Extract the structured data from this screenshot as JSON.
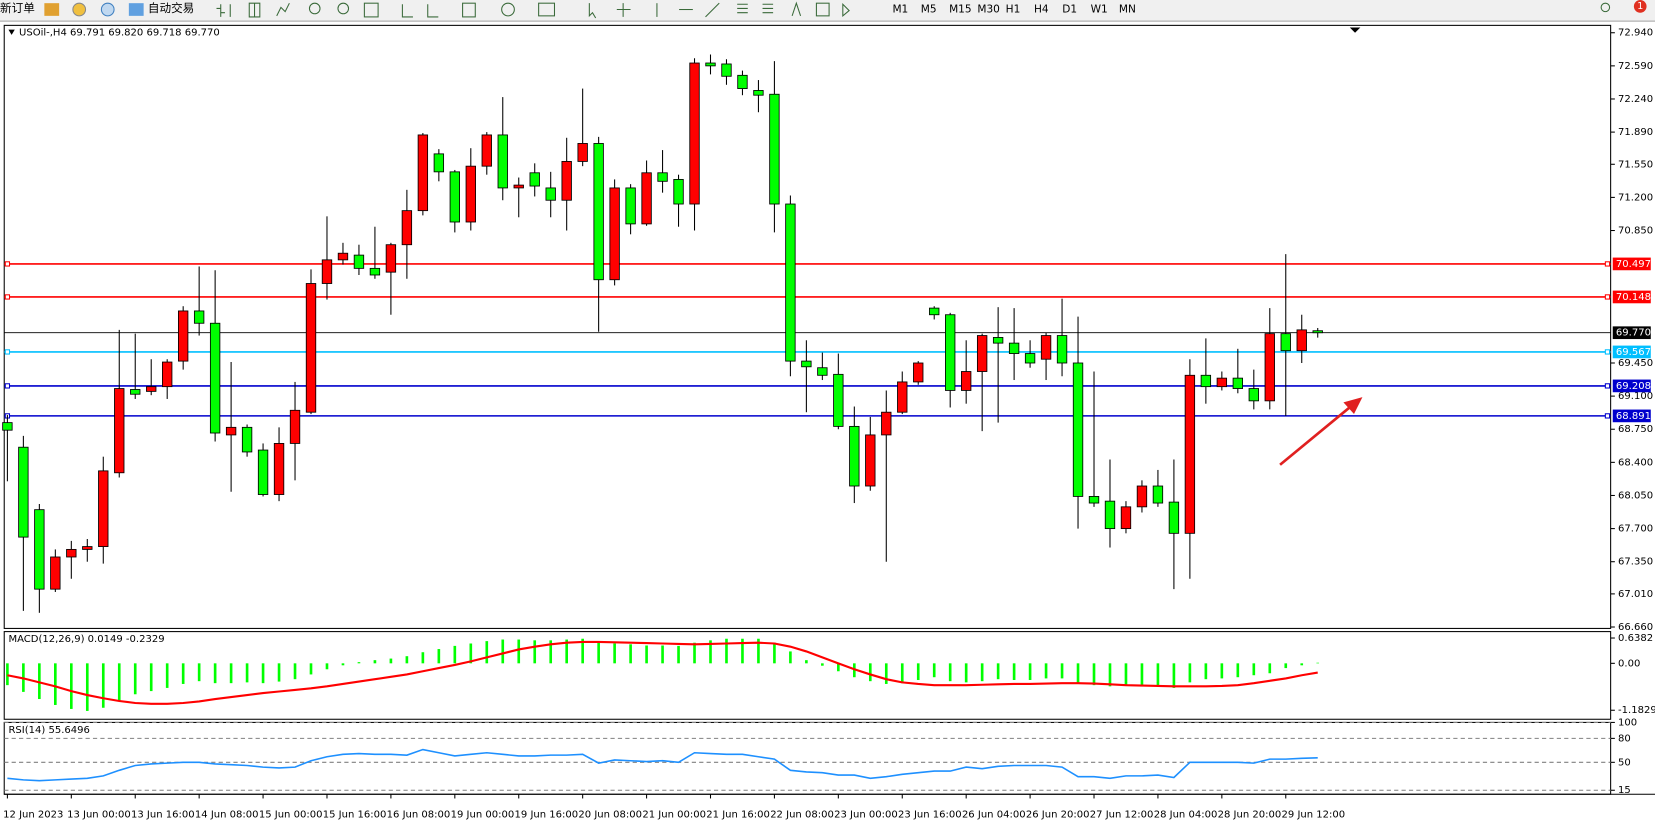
{
  "toolbar": {
    "new_order": "新订单",
    "auto_trading": "自动交易",
    "timeframes": [
      "M1",
      "M5",
      "M15",
      "M30",
      "H1",
      "H4",
      "D1",
      "W1",
      "MN"
    ],
    "badge": "1"
  },
  "chart_data": [
    {
      "type": "candlestick",
      "header": "USOil-,H4  69.791 69.820 69.718 69.770",
      "categories": [
        "12 Jun 2023",
        null,
        null,
        null,
        "13 Jun 00:00",
        null,
        null,
        null,
        "13 Jun 16:00",
        null,
        null,
        null,
        "14 Jun 08:00",
        null,
        null,
        null,
        "15 Jun 00:00",
        null,
        null,
        null,
        "15 Jun 16:00",
        null,
        null,
        null,
        "16 Jun 08:00",
        null,
        null,
        null,
        "19 Jun 00:00",
        null,
        null,
        null,
        "19 Jun 16:00",
        null,
        null,
        null,
        "20 Jun 08:00",
        null,
        null,
        null,
        "21 Jun 00:00",
        null,
        null,
        null,
        "21 Jun 16:00",
        null,
        null,
        null,
        "22 Jun 08:00",
        null,
        null,
        null,
        "23 Jun 00:00",
        null,
        null,
        null,
        "23 Jun 16:00",
        null,
        null,
        null,
        "26 Jun 04:00",
        null,
        null,
        null,
        "26 Jun 20:00",
        null,
        null,
        null,
        "27 Jun 12:00",
        null,
        null,
        null,
        "28 Jun 04:00",
        null,
        null,
        null,
        "28 Jun 20:00",
        null,
        null,
        null,
        "29 Jun 12:00",
        null,
        null
      ],
      "open": [
        68.82,
        68.56,
        67.9,
        67.06,
        67.4,
        67.48,
        67.51,
        68.29,
        69.17,
        69.15,
        69.2,
        69.47,
        70.0,
        69.87,
        68.69,
        68.77,
        68.53,
        68.06,
        68.6,
        68.93,
        70.29,
        70.54,
        70.59,
        70.45,
        70.41,
        70.7,
        71.06,
        71.66,
        71.47,
        70.94,
        71.53,
        71.86,
        71.3,
        71.46,
        71.3,
        71.17,
        71.58,
        71.77,
        70.33,
        71.3,
        70.92,
        71.46,
        71.39,
        71.13,
        72.62,
        72.61,
        72.49,
        72.33,
        72.29,
        71.13,
        69.47,
        69.4,
        69.33,
        68.78,
        68.15,
        68.69,
        68.93,
        69.25,
        70.03,
        69.96,
        69.16,
        69.36,
        69.72,
        69.66,
        69.55,
        69.49,
        69.74,
        69.45,
        68.04,
        67.99,
        67.7,
        67.93,
        68.15,
        67.98,
        67.65,
        69.32,
        69.2,
        69.29,
        69.18,
        69.05,
        69.76,
        69.58,
        69.791
      ],
      "high": [
        68.9,
        68.68,
        67.96,
        67.48,
        67.57,
        67.59,
        68.46,
        69.8,
        69.76,
        69.49,
        69.49,
        70.05,
        70.47,
        70.43,
        69.46,
        68.8,
        68.6,
        68.77,
        69.25,
        70.44,
        71.0,
        70.72,
        70.7,
        70.89,
        70.72,
        71.28,
        71.88,
        71.71,
        71.49,
        71.72,
        71.89,
        72.26,
        71.41,
        71.56,
        71.47,
        71.83,
        72.35,
        71.84,
        71.39,
        71.34,
        71.59,
        71.7,
        71.44,
        72.67,
        72.71,
        72.66,
        72.54,
        72.44,
        72.64,
        71.22,
        69.69,
        69.56,
        69.55,
        68.99,
        68.88,
        69.16,
        69.36,
        69.47,
        70.05,
        69.98,
        69.69,
        69.76,
        70.04,
        70.03,
        69.69,
        69.77,
        70.13,
        69.94,
        69.36,
        68.43,
        67.99,
        68.21,
        68.32,
        68.43,
        69.49,
        69.71,
        69.36,
        69.6,
        69.38,
        70.03,
        70.6,
        69.96,
        69.82
      ],
      "low": [
        68.2,
        66.83,
        66.81,
        67.03,
        67.17,
        67.35,
        67.33,
        68.24,
        69.07,
        69.11,
        69.07,
        69.38,
        69.74,
        68.62,
        68.09,
        68.46,
        68.04,
        67.99,
        68.21,
        68.91,
        70.12,
        70.49,
        70.38,
        70.34,
        69.96,
        70.34,
        71.01,
        71.37,
        70.83,
        70.85,
        71.44,
        71.17,
        70.99,
        71.21,
        70.99,
        70.85,
        71.53,
        69.78,
        70.27,
        70.81,
        70.9,
        71.25,
        70.89,
        70.85,
        72.5,
        72.39,
        72.28,
        72.1,
        70.83,
        69.31,
        68.93,
        69.27,
        68.75,
        67.97,
        68.1,
        67.35,
        68.91,
        69.22,
        69.91,
        68.98,
        69.02,
        68.73,
        68.82,
        69.27,
        69.4,
        69.27,
        69.31,
        67.7,
        67.93,
        67.5,
        67.65,
        67.87,
        67.93,
        67.06,
        67.17,
        69.02,
        69.16,
        69.13,
        68.96,
        68.96,
        68.89,
        69.45,
        69.718
      ],
      "close": [
        68.74,
        67.61,
        67.06,
        67.4,
        67.48,
        67.51,
        68.31,
        69.18,
        69.12,
        69.2,
        69.46,
        70.0,
        69.87,
        68.71,
        68.77,
        68.51,
        68.06,
        68.6,
        68.95,
        70.29,
        70.54,
        70.61,
        70.45,
        70.38,
        70.7,
        71.06,
        71.86,
        71.47,
        70.94,
        71.53,
        71.86,
        71.3,
        71.33,
        71.32,
        71.17,
        71.58,
        71.77,
        70.33,
        71.3,
        70.92,
        71.46,
        71.37,
        71.13,
        72.62,
        72.59,
        72.48,
        72.35,
        72.28,
        71.13,
        69.47,
        69.41,
        69.32,
        68.78,
        68.15,
        68.69,
        68.93,
        69.25,
        69.45,
        69.96,
        69.16,
        69.36,
        69.74,
        69.66,
        69.55,
        69.45,
        69.74,
        69.45,
        68.04,
        67.97,
        67.7,
        67.93,
        68.15,
        67.97,
        67.65,
        69.32,
        69.2,
        69.29,
        69.18,
        69.05,
        69.76,
        69.58,
        69.8,
        69.77
      ],
      "up_color": "#ff0000",
      "down_color": "#00ff00",
      "wick_color": "#000000",
      "ylim": [
        66.645,
        73.018
      ],
      "yticks": [
        {
          "value": 72.94,
          "label": "72.940"
        },
        {
          "value": 72.59,
          "label": "72.590"
        },
        {
          "value": 72.24,
          "label": "72.240"
        },
        {
          "value": 71.89,
          "label": "71.890"
        },
        {
          "value": 71.55,
          "label": "71.550"
        },
        {
          "value": 71.2,
          "label": "71.200"
        },
        {
          "value": 70.85,
          "label": "70.850"
        },
        {
          "value": 69.45,
          "label": "69.450"
        },
        {
          "value": 69.1,
          "label": "69.100"
        },
        {
          "value": 68.75,
          "label": "68.750"
        },
        {
          "value": 68.4,
          "label": "68.400"
        },
        {
          "value": 68.05,
          "label": "68.050"
        },
        {
          "value": 67.7,
          "label": "67.700"
        },
        {
          "value": 67.35,
          "label": "67.350"
        },
        {
          "value": 67.01,
          "label": "67.010"
        },
        {
          "value": 66.66,
          "label": "66.660"
        }
      ],
      "levels": [
        70.497,
        70.148,
        69.567,
        69.208,
        68.891
      ],
      "level_colors": [
        "#ff0000",
        "#ff0000",
        "#00bfff",
        "#0000cd",
        "#0000cd"
      ],
      "last_price": {
        "value": 69.77,
        "label": "69.770"
      }
    },
    {
      "type": "macd",
      "header": "MACD(12,26,9) 0.0149 -0.2329",
      "histogram": {
        "color": "#00ff00",
        "values": [
          -0.55,
          -0.72,
          -0.9,
          -1.05,
          -1.15,
          -1.2,
          -1.12,
          -0.95,
          -0.78,
          -0.7,
          -0.62,
          -0.52,
          -0.45,
          -0.5,
          -0.5,
          -0.48,
          -0.5,
          -0.46,
          -0.4,
          -0.28,
          -0.15,
          -0.05,
          0.03,
          0.08,
          0.12,
          0.18,
          0.28,
          0.36,
          0.44,
          0.5,
          0.56,
          0.6,
          0.6,
          0.58,
          0.58,
          0.6,
          0.62,
          0.55,
          0.5,
          0.48,
          0.45,
          0.45,
          0.44,
          0.52,
          0.58,
          0.62,
          0.62,
          0.62,
          0.52,
          0.3,
          0.08,
          -0.06,
          -0.2,
          -0.35,
          -0.45,
          -0.52,
          -0.5,
          -0.42,
          -0.35,
          -0.45,
          -0.48,
          -0.45,
          -0.4,
          -0.42,
          -0.42,
          -0.38,
          -0.38,
          -0.5,
          -0.55,
          -0.58,
          -0.55,
          -0.55,
          -0.58,
          -0.62,
          -0.48,
          -0.4,
          -0.38,
          -0.35,
          -0.3,
          -0.25,
          -0.12,
          -0.05,
          0.0149
        ]
      },
      "signal": {
        "color": "#ff0000",
        "values": [
          -0.3,
          -0.38,
          -0.48,
          -0.58,
          -0.7,
          -0.8,
          -0.88,
          -0.95,
          -1.0,
          -1.02,
          -1.02,
          -1.0,
          -0.96,
          -0.9,
          -0.85,
          -0.8,
          -0.75,
          -0.71,
          -0.67,
          -0.63,
          -0.58,
          -0.52,
          -0.46,
          -0.4,
          -0.34,
          -0.28,
          -0.2,
          -0.12,
          -0.04,
          0.05,
          0.15,
          0.25,
          0.35,
          0.42,
          0.48,
          0.52,
          0.54,
          0.54,
          0.53,
          0.52,
          0.51,
          0.5,
          0.49,
          0.48,
          0.49,
          0.5,
          0.51,
          0.52,
          0.5,
          0.42,
          0.3,
          0.15,
          0.0,
          -0.15,
          -0.28,
          -0.4,
          -0.48,
          -0.52,
          -0.55,
          -0.55,
          -0.55,
          -0.54,
          -0.53,
          -0.52,
          -0.52,
          -0.51,
          -0.5,
          -0.5,
          -0.51,
          -0.53,
          -0.55,
          -0.56,
          -0.57,
          -0.58,
          -0.58,
          -0.58,
          -0.57,
          -0.55,
          -0.5,
          -0.44,
          -0.38,
          -0.3,
          -0.2329
        ]
      },
      "ylim": [
        -1.41,
        0.8
      ],
      "yticks": [
        0.6382,
        {
          "value": 0,
          "label": "0.00"
        },
        -1.1829
      ]
    },
    {
      "type": "line",
      "header": "RSI(14) 55.6496",
      "color": "#1e90ff",
      "values": [
        30,
        28,
        27,
        28,
        29,
        30,
        33,
        40,
        46,
        48,
        49,
        50,
        50,
        48,
        47,
        46,
        44,
        43,
        44,
        52,
        57,
        60,
        61,
        60,
        60,
        59,
        66,
        62,
        58,
        60,
        62,
        60,
        58,
        58,
        59,
        59,
        60,
        49,
        53,
        52,
        51,
        52,
        50,
        62,
        61,
        60,
        60,
        57,
        54,
        40,
        38,
        37,
        34,
        34,
        30,
        32,
        35,
        37,
        39,
        39,
        44,
        42,
        45,
        46,
        46,
        46,
        44,
        32,
        32,
        30,
        33,
        33,
        34,
        31,
        50,
        50,
        50,
        50,
        49,
        54,
        54,
        55,
        55.6496
      ],
      "ylim": [
        10,
        100
      ],
      "yticks": [
        100,
        80,
        50,
        15
      ],
      "grid_dashed": true
    }
  ]
}
